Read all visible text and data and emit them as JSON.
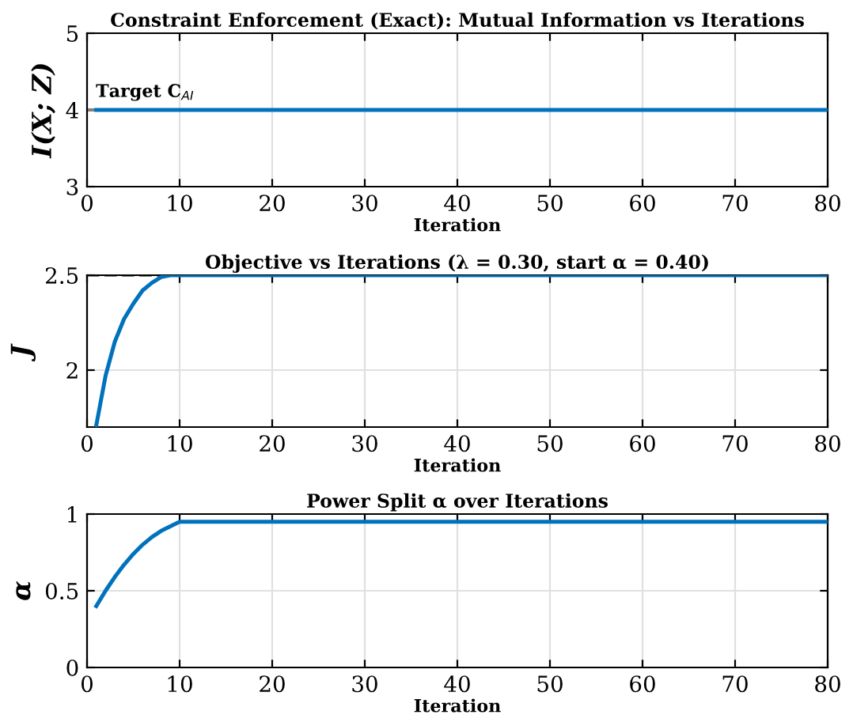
{
  "chart_data": [
    {
      "type": "line",
      "title": "Constraint Enforcement (Exact): Mutual Information vs Iterations",
      "xlabel": "Iteration",
      "ylabel": "I(X; Z)",
      "x": [
        1,
        80
      ],
      "series": [
        {
          "color": "#0072bd",
          "values": [
            4,
            4
          ]
        }
      ],
      "ref_lines": [
        {
          "axis": "y",
          "value": 4,
          "label": "Target C$_{AI}$",
          "color": "#808080",
          "line_style": "dashed"
        }
      ],
      "xlim": [
        0,
        80
      ],
      "xticks": [
        0,
        10,
        20,
        30,
        40,
        50,
        60,
        70,
        80
      ],
      "ylim": [
        3,
        5
      ],
      "yticks": [
        3,
        4,
        5
      ],
      "grid": true
    },
    {
      "type": "line",
      "title": "Objective vs Iterations (λ = 0.30, start α = 0.40)",
      "xlabel": "Iteration",
      "ylabel": "J",
      "x": [
        1,
        2,
        3,
        4,
        5,
        6,
        7,
        8,
        9,
        10,
        80
      ],
      "series": [
        {
          "color": "#0072bd",
          "values": [
            1.71,
            1.97,
            2.15,
            2.27,
            2.35,
            2.42,
            2.46,
            2.49,
            2.5,
            2.5,
            2.5
          ]
        }
      ],
      "ref_lines": [
        {
          "axis": "y",
          "value": 2.5,
          "color": "#808080",
          "line_style": "dashed"
        }
      ],
      "xlim": [
        0,
        80
      ],
      "xticks": [
        0,
        10,
        20,
        30,
        40,
        50,
        60,
        70,
        80
      ],
      "ylim": [
        1.7,
        2.5
      ],
      "yticks": [
        2,
        2.5
      ],
      "grid": true
    },
    {
      "type": "line",
      "title": "Power Split α over Iterations",
      "xlabel": "Iteration",
      "ylabel": "α",
      "x": [
        1,
        2,
        3,
        4,
        5,
        6,
        7,
        8,
        9,
        10,
        80
      ],
      "series": [
        {
          "color": "#0072bd",
          "values": [
            0.4,
            0.5,
            0.59,
            0.67,
            0.74,
            0.8,
            0.85,
            0.89,
            0.92,
            0.95,
            0.95
          ]
        }
      ],
      "xlim": [
        0,
        80
      ],
      "xticks": [
        0,
        10,
        20,
        30,
        40,
        50,
        60,
        70,
        80
      ],
      "ylim": [
        0,
        1
      ],
      "yticks": [
        0,
        0.5,
        1
      ],
      "grid": true
    }
  ]
}
